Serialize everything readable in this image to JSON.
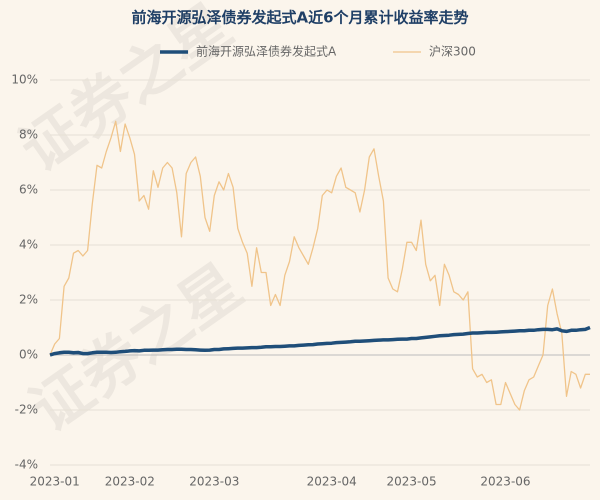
{
  "chart_data": {
    "type": "line",
    "title": "前海开源弘泽债券发起式A近6个月累计收益率走势",
    "watermark": "证券之星",
    "categories": [
      null,
      "2023-01",
      null,
      null,
      null,
      null,
      null,
      null,
      null,
      null,
      null,
      null,
      null,
      null,
      null,
      null,
      null,
      "2023-02",
      null,
      null,
      null,
      null,
      null,
      null,
      null,
      null,
      null,
      null,
      null,
      null,
      null,
      null,
      null,
      null,
      null,
      "2023-03",
      null,
      null,
      null,
      null,
      null,
      null,
      null,
      null,
      null,
      null,
      null,
      null,
      null,
      null,
      null,
      null,
      null,
      null,
      null,
      null,
      null,
      null,
      null,
      null,
      "2023-04",
      null,
      null,
      null,
      null,
      null,
      null,
      null,
      null,
      null,
      null,
      null,
      null,
      null,
      null,
      null,
      null,
      "2023-05",
      null,
      null,
      null,
      null,
      null,
      null,
      null,
      null,
      null,
      null,
      null,
      null,
      null,
      null,
      null,
      null,
      null,
      null,
      null,
      "2023-06",
      null,
      null,
      null,
      null,
      null,
      null,
      null,
      null,
      null,
      null,
      null,
      null,
      null,
      null,
      null,
      null,
      null,
      null
    ],
    "series": [
      {
        "name": "前海开源弘泽债券发起式A",
        "color": "#1f4e79",
        "width": 3.5,
        "values": [
          0,
          0.05,
          0.08,
          0.1,
          0.1,
          0.08,
          0.09,
          0.05,
          0.05,
          0.08,
          0.1,
          0.1,
          0.1,
          0.09,
          0.1,
          0.12,
          0.13,
          0.15,
          0.16,
          0.15,
          0.17,
          0.17,
          0.18,
          0.18,
          0.19,
          0.2,
          0.2,
          0.21,
          0.21,
          0.2,
          0.2,
          0.19,
          0.18,
          0.17,
          0.18,
          0.2,
          0.2,
          0.22,
          0.23,
          0.24,
          0.25,
          0.25,
          0.26,
          0.27,
          0.27,
          0.28,
          0.3,
          0.3,
          0.31,
          0.31,
          0.32,
          0.33,
          0.33,
          0.35,
          0.36,
          0.37,
          0.38,
          0.4,
          0.41,
          0.42,
          0.43,
          0.45,
          0.46,
          0.47,
          0.48,
          0.5,
          0.5,
          0.51,
          0.52,
          0.53,
          0.54,
          0.55,
          0.55,
          0.56,
          0.57,
          0.58,
          0.58,
          0.6,
          0.6,
          0.62,
          0.64,
          0.66,
          0.68,
          0.7,
          0.71,
          0.72,
          0.74,
          0.75,
          0.76,
          0.78,
          0.8,
          0.8,
          0.81,
          0.82,
          0.82,
          0.83,
          0.84,
          0.85,
          0.86,
          0.87,
          0.88,
          0.88,
          0.9,
          0.9,
          0.92,
          0.93,
          0.93,
          0.92,
          0.95,
          0.88,
          0.86,
          0.9,
          0.9,
          0.92,
          0.93,
          1.0
        ]
      },
      {
        "name": "沪深300",
        "color": "#f0c48a",
        "width": 1.3,
        "values": [
          0,
          0.4,
          0.6,
          2.5,
          2.8,
          3.7,
          3.8,
          3.6,
          3.8,
          5.5,
          6.9,
          6.8,
          7.4,
          7.9,
          8.5,
          7.4,
          8.4,
          7.9,
          7.3,
          5.6,
          5.8,
          5.3,
          6.7,
          6.1,
          6.8,
          7.0,
          6.8,
          5.9,
          4.3,
          6.6,
          7.0,
          7.2,
          6.5,
          5.0,
          4.5,
          5.8,
          6.3,
          6.0,
          6.6,
          6.1,
          4.6,
          4.1,
          3.7,
          2.5,
          3.9,
          3.0,
          3.0,
          1.8,
          2.2,
          1.8,
          2.9,
          3.4,
          4.3,
          3.9,
          3.6,
          3.3,
          3.9,
          4.6,
          5.8,
          6.0,
          5.9,
          6.5,
          6.8,
          6.1,
          6.0,
          5.9,
          5.2,
          6.0,
          7.2,
          7.5,
          6.5,
          5.6,
          2.8,
          2.4,
          2.3,
          3.1,
          4.1,
          4.1,
          3.8,
          4.9,
          3.3,
          2.7,
          2.9,
          1.8,
          3.3,
          2.9,
          2.3,
          2.2,
          2.0,
          2.3,
          -0.5,
          -0.8,
          -0.7,
          -1.0,
          -0.9,
          -1.8,
          -1.8,
          -1.0,
          -1.4,
          -1.8,
          -2.0,
          -1.3,
          -0.9,
          -0.8,
          -0.4,
          0.0,
          1.8,
          2.4,
          1.5,
          0.8,
          -1.5,
          -0.6,
          -0.7,
          -1.2,
          -0.7,
          -0.7
        ]
      }
    ],
    "ylim": [
      -4,
      10
    ],
    "yticks": [
      {
        "value": -4,
        "label": "-4%"
      },
      {
        "value": -2,
        "label": "-2%"
      },
      {
        "value": 0,
        "label": "0%"
      },
      {
        "value": 2,
        "label": "2%"
      },
      {
        "value": 4,
        "label": "4%"
      },
      {
        "value": 6,
        "label": "6%"
      },
      {
        "value": 8,
        "label": "8%"
      },
      {
        "value": 10,
        "label": "10%"
      }
    ],
    "grid": true
  }
}
